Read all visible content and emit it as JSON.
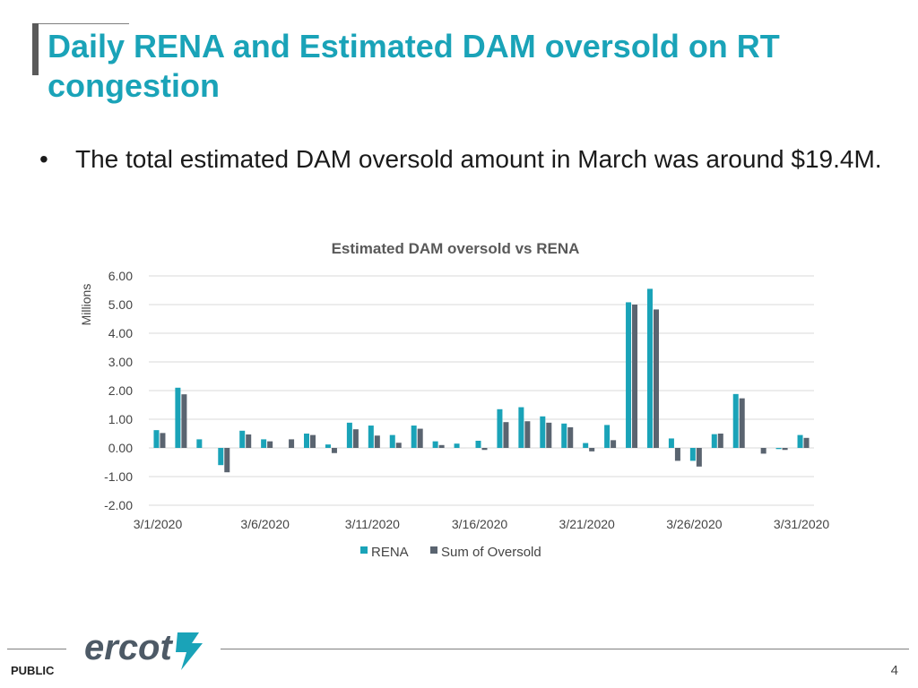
{
  "slide": {
    "title": "Daily RENA and Estimated DAM oversold on RT congestion",
    "bullet": "The total estimated DAM oversold amount in March was around $19.4M.",
    "footer_label": "PUBLIC",
    "page_number": "4",
    "logo_text": "ercot"
  },
  "colors": {
    "title": "#1aa3b8",
    "rena": "#1aa3b8",
    "oversold": "#5a6470"
  },
  "chart_data": {
    "type": "bar",
    "title": "Estimated DAM oversold vs RENA",
    "ylabel": "Millions",
    "ylim": [
      -2.0,
      6.0
    ],
    "yticks": [
      -2.0,
      -1.0,
      0.0,
      1.0,
      2.0,
      3.0,
      4.0,
      5.0,
      6.0
    ],
    "ytick_labels": [
      "-2.00",
      "-1.00",
      "0.00",
      "1.00",
      "2.00",
      "3.00",
      "4.00",
      "5.00",
      "6.00"
    ],
    "categories": [
      "3/1/2020",
      "3/2/2020",
      "3/3/2020",
      "3/4/2020",
      "3/5/2020",
      "3/6/2020",
      "3/7/2020",
      "3/8/2020",
      "3/9/2020",
      "3/10/2020",
      "3/11/2020",
      "3/12/2020",
      "3/13/2020",
      "3/14/2020",
      "3/15/2020",
      "3/16/2020",
      "3/17/2020",
      "3/18/2020",
      "3/19/2020",
      "3/20/2020",
      "3/21/2020",
      "3/22/2020",
      "3/23/2020",
      "3/24/2020",
      "3/25/2020",
      "3/26/2020",
      "3/27/2020",
      "3/28/2020",
      "3/29/2020",
      "3/30/2020",
      "3/31/2020"
    ],
    "xtick_labels": [
      {
        "index": 0,
        "label": "3/1/2020"
      },
      {
        "index": 5,
        "label": "3/6/2020"
      },
      {
        "index": 10,
        "label": "3/11/2020"
      },
      {
        "index": 15,
        "label": "3/16/2020"
      },
      {
        "index": 20,
        "label": "3/21/2020"
      },
      {
        "index": 25,
        "label": "3/26/2020"
      },
      {
        "index": 30,
        "label": "3/31/2020"
      }
    ],
    "series": [
      {
        "name": "RENA",
        "values": [
          0.62,
          2.1,
          0.3,
          -0.6,
          0.6,
          0.3,
          0.0,
          0.5,
          0.12,
          0.88,
          0.78,
          0.45,
          0.78,
          0.23,
          0.15,
          0.25,
          1.35,
          1.42,
          1.1,
          0.85,
          0.17,
          0.8,
          5.08,
          5.55,
          0.33,
          -0.45,
          0.48,
          1.88,
          0.0,
          -0.04,
          0.45
        ]
      },
      {
        "name": "Sum of Oversold",
        "values": [
          0.52,
          1.87,
          0.0,
          -0.85,
          0.47,
          0.23,
          0.3,
          0.45,
          -0.18,
          0.65,
          0.43,
          0.18,
          0.67,
          0.1,
          0.0,
          -0.07,
          0.9,
          0.93,
          0.88,
          0.72,
          -0.12,
          0.27,
          5.0,
          4.83,
          -0.45,
          -0.65,
          0.5,
          1.73,
          -0.2,
          -0.07,
          0.35
        ]
      }
    ],
    "legend_position": "bottom"
  }
}
